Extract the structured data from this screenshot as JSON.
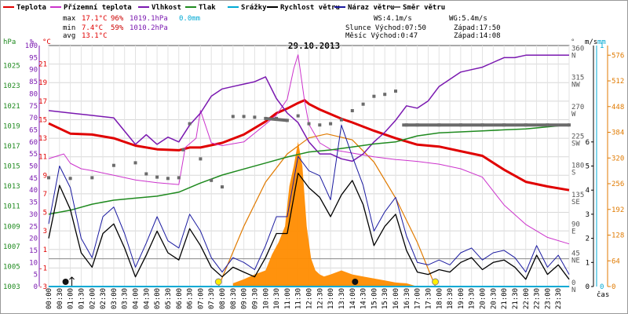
{
  "legend": [
    {
      "label": "Teplota",
      "color": "#e00000"
    },
    {
      "label": "Přízemní teplota",
      "color": "#cc33cc"
    },
    {
      "label": "Vlhkost",
      "color": "#7a18b0"
    },
    {
      "label": "Tlak",
      "color": "#1f8a1f"
    },
    {
      "label": "Srážky",
      "color": "#00a9d4"
    },
    {
      "label": "Rychlost větru",
      "color": "#000000"
    },
    {
      "label": "Náraz větru",
      "color": "#1a1aa0"
    },
    {
      "label": "Směr větru",
      "color": "#6b6b6b"
    }
  ],
  "stats": {
    "max": {
      "label": "max",
      "temp": "17.1°C",
      "hum": "96%",
      "press": "1019.1hPa",
      "rain": "0.0mm"
    },
    "min": {
      "label": "min",
      "temp": "7.4°C",
      "hum": "59%",
      "press": "1010.2hPa"
    },
    "avg": {
      "label": "avg",
      "temp": "13.1°C"
    }
  },
  "info": {
    "ws": "WS:4.1m/s",
    "wg": "WG:5.4m/s",
    "sun": "Slunce Východ:07:50",
    "sun_set": "Západ:17:50",
    "moon": "Měsíc  Východ:0:47",
    "moon_set": "Západ:14:08"
  },
  "chart_data": {
    "type": "line",
    "title": "29.10.2013",
    "xlabel": "čas",
    "x_ticks": [
      "00:00",
      "00:30",
      "01:00",
      "01:30",
      "02:00",
      "02:30",
      "03:00",
      "03:30",
      "04:00",
      "04:30",
      "05:00",
      "05:30",
      "06:00",
      "06:30",
      "07:00",
      "07:30",
      "08:00",
      "08:30",
      "09:00",
      "09:30",
      "10:00",
      "10:30",
      "11:00",
      "11:30",
      "12:00",
      "12:30",
      "13:00",
      "13:30",
      "14:00",
      "14:30",
      "15:00",
      "15:30",
      "16:00",
      "16:30",
      "17:00",
      "17:30",
      "18:00",
      "18:30",
      "19:00",
      "19:30",
      "20:00",
      "20:30",
      "21:00",
      "21:30",
      "22:00",
      "22:30",
      "23:00",
      "23:30"
    ],
    "axes": {
      "pressure": {
        "unit": "hPa",
        "range": [
          1003,
          1027
        ],
        "ticks": [
          1003,
          1005,
          1007,
          1009,
          1011,
          1013,
          1015,
          1017,
          1019,
          1021,
          1023,
          1025
        ]
      },
      "humidity": {
        "unit": "%",
        "range": [
          0,
          100
        ],
        "ticks": [
          0,
          5,
          10,
          15,
          20,
          25,
          30,
          35,
          40,
          45,
          50,
          55,
          60,
          65,
          70,
          75,
          80,
          85,
          90,
          95,
          100
        ]
      },
      "temperature": {
        "unit": "°C",
        "range": [
          -3,
          23
        ],
        "ticks": [
          -3,
          -1,
          1,
          3,
          5,
          7,
          9,
          11,
          13,
          15,
          17,
          19,
          21
        ]
      },
      "direction": {
        "unit": "°",
        "range": [
          0,
          370
        ],
        "ticks": [
          "0 N",
          "45 NE",
          "90 E",
          "135 SE",
          "180 S",
          "225 SW",
          "270 W",
          "315 NW",
          "360 N"
        ]
      },
      "wind": {
        "unit": "m/s",
        "range": [
          0,
          10
        ],
        "ticks": [
          0,
          1,
          2,
          3,
          4,
          5,
          6
        ]
      },
      "rain": {
        "unit": "mm",
        "range": [
          0,
          1
        ],
        "ticks": [
          0,
          1
        ]
      },
      "solar": {
        "unit": "",
        "range": [
          0,
          600
        ],
        "ticks": [
          0,
          64,
          128,
          192,
          256,
          320,
          384,
          448,
          512,
          576
        ]
      }
    },
    "series": [
      {
        "name": "Teplota",
        "axis": "temperature",
        "color": "#e00000",
        "x": [
          0,
          1,
          2,
          3,
          4,
          5,
          6,
          6.5,
          7,
          8,
          9,
          10,
          10.5,
          11,
          11.5,
          11.8,
          12,
          12.5,
          13,
          13.5,
          14,
          15,
          16,
          17,
          18,
          19,
          20,
          21,
          22,
          23,
          24
        ],
        "y": [
          14.6,
          13.5,
          13.4,
          13.0,
          12.2,
          11.8,
          11.7,
          12.0,
          12.0,
          12.5,
          13.4,
          14.8,
          15.7,
          16.2,
          16.8,
          17.1,
          16.7,
          16.1,
          15.6,
          15.1,
          14.7,
          13.8,
          13.0,
          12.3,
          12.1,
          11.6,
          11.1,
          9.6,
          8.3,
          7.8,
          7.4
        ]
      },
      {
        "name": "Přízemní teplota",
        "axis": "temperature",
        "color": "#cc33cc",
        "x": [
          0,
          0.7,
          1,
          1.5,
          2,
          3,
          4,
          5,
          6,
          6.3,
          6.8,
          7,
          7.5,
          8,
          9,
          10,
          10.5,
          11,
          11.3,
          11.5,
          11.8,
          12,
          12.5,
          13,
          14,
          15,
          16,
          17,
          18,
          19,
          20,
          21,
          22,
          23,
          24
        ],
        "y": [
          10.8,
          11.3,
          10.3,
          9.7,
          9.5,
          9.0,
          8.5,
          8.2,
          8.0,
          12.0,
          13.0,
          16.0,
          12.5,
          12.2,
          12.6,
          14.5,
          15.5,
          17.2,
          20.5,
          22.0,
          17.0,
          14.5,
          12.5,
          11.8,
          11.4,
          11.0,
          10.7,
          10.5,
          10.2,
          9.7,
          8.8,
          5.8,
          3.7,
          2.3,
          1.6
        ]
      },
      {
        "name": "Vlhkost",
        "axis": "humidity",
        "color": "#7a18b0",
        "x": [
          0,
          1,
          2,
          3,
          4,
          4.5,
          5,
          5.5,
          6,
          6.5,
          7,
          7.5,
          8,
          8.5,
          9,
          9.5,
          10,
          10.5,
          11,
          11.5,
          12,
          12.5,
          13,
          13.5,
          14,
          14.5,
          15,
          15.5,
          16,
          16.5,
          17,
          17.5,
          18,
          18.5,
          19,
          19.5,
          20,
          20.5,
          21,
          21.5,
          22,
          22.5,
          23,
          24
        ],
        "y": [
          73,
          72,
          71,
          70,
          59,
          63,
          59,
          62,
          60,
          67,
          72,
          79,
          82,
          83,
          84,
          85,
          87,
          78,
          72,
          68,
          60,
          55,
          55,
          53,
          52,
          55,
          60,
          64,
          69,
          75,
          74,
          77,
          83,
          86,
          89,
          90,
          91,
          93,
          95,
          95,
          96,
          96,
          96,
          96
        ]
      },
      {
        "name": "Tlak",
        "axis": "pressure",
        "color": "#1f8a1f",
        "x": [
          0,
          1,
          2,
          3,
          4,
          5,
          6,
          7,
          8,
          9,
          10,
          11,
          12,
          13,
          14,
          15,
          16,
          17,
          18,
          19,
          20,
          21,
          22,
          23,
          24
        ],
        "y": [
          1010.2,
          1010.6,
          1011.2,
          1011.6,
          1011.8,
          1012.0,
          1012.4,
          1013.3,
          1014.1,
          1014.7,
          1015.3,
          1015.9,
          1016.4,
          1016.6,
          1016.9,
          1017.2,
          1017.4,
          1018.0,
          1018.3,
          1018.4,
          1018.5,
          1018.6,
          1018.7,
          1018.9,
          1019.1
        ]
      },
      {
        "name": "Směr větru",
        "axis": "direction",
        "color": "#6b6b6b",
        "x": [
          0,
          1,
          2,
          3,
          4,
          4.5,
          5,
          5.5,
          6,
          6.2,
          6.5,
          7,
          7.5,
          8,
          8.5,
          9,
          9.5,
          10,
          10.5,
          11,
          11.5,
          12,
          12.5,
          13,
          13.5,
          14,
          14.5,
          15,
          15.5,
          16,
          16.5,
          17,
          18,
          19,
          20,
          21,
          22,
          23,
          24
        ],
        "y": [
          167,
          166,
          167,
          186,
          190,
          173,
          168,
          166,
          167,
          210,
          250,
          196,
          163,
          153,
          261,
          261,
          260,
          258,
          258,
          255,
          262,
          250,
          248,
          250,
          256,
          270,
          280,
          292,
          295,
          300,
          248,
          248,
          248,
          248,
          248,
          248,
          248,
          248,
          248
        ]
      },
      {
        "name": "Rychlost větru",
        "axis": "wind",
        "color": "#000000",
        "x": [
          0,
          0.5,
          1,
          1.5,
          2,
          2.5,
          3,
          3.5,
          4,
          4.5,
          5,
          5.5,
          6,
          6.5,
          7,
          7.5,
          8,
          8.5,
          9,
          9.5,
          10,
          10.5,
          11,
          11.5,
          12,
          12.5,
          13,
          13.5,
          14,
          14.5,
          15,
          15.5,
          16,
          16.5,
          17,
          17.5,
          18,
          18.5,
          19,
          19.5,
          20,
          20.5,
          21,
          21.5,
          22,
          22.5,
          23,
          23.5,
          24
        ],
        "y": [
          2.0,
          4.2,
          3.2,
          1.4,
          0.8,
          2.2,
          2.6,
          1.6,
          0.4,
          1.3,
          2.3,
          1.4,
          1.1,
          2.4,
          1.7,
          0.8,
          0.4,
          0.8,
          0.6,
          0.4,
          1.2,
          2.2,
          2.2,
          4.7,
          4.1,
          3.7,
          2.9,
          3.8,
          4.4,
          3.4,
          1.7,
          2.5,
          3.0,
          1.5,
          0.6,
          0.5,
          0.7,
          0.6,
          1.0,
          1.2,
          0.7,
          1.0,
          1.1,
          0.8,
          0.3,
          1.3,
          0.5,
          0.9,
          0.3
        ]
      },
      {
        "name": "Náraz větru",
        "axis": "wind",
        "color": "#1a1aa0",
        "x": [
          0,
          0.5,
          1,
          1.5,
          2,
          2.5,
          3,
          3.5,
          4,
          4.5,
          5,
          5.5,
          6,
          6.5,
          7,
          7.5,
          8,
          8.5,
          9,
          9.5,
          10,
          10.5,
          11,
          11.5,
          12,
          12.5,
          13,
          13.5,
          14,
          14.5,
          15,
          15.5,
          16,
          16.5,
          17,
          17.5,
          18,
          18.5,
          19,
          19.5,
          20,
          20.5,
          21,
          21.5,
          22,
          22.5,
          23,
          23.5,
          24
        ],
        "y": [
          2.6,
          5.0,
          4.1,
          2.0,
          1.2,
          2.9,
          3.3,
          2.2,
          0.8,
          1.8,
          2.9,
          1.9,
          1.6,
          3.0,
          2.3,
          1.2,
          0.6,
          1.2,
          1.0,
          0.7,
          1.7,
          2.9,
          2.9,
          5.4,
          4.8,
          4.6,
          3.6,
          6.7,
          5.4,
          4.2,
          2.3,
          3.1,
          3.7,
          2.1,
          1.0,
          0.9,
          1.1,
          0.9,
          1.4,
          1.6,
          1.1,
          1.4,
          1.5,
          1.2,
          0.6,
          1.7,
          0.8,
          1.3,
          0.5
        ]
      },
      {
        "name": "Srážky",
        "axis": "rain",
        "color": "#00a9d4",
        "x": [
          0,
          24
        ],
        "y": [
          0,
          0
        ]
      }
    ],
    "solar_clear_sky": {
      "color": "#e07a00",
      "x": [
        7.83,
        9,
        10,
        11,
        12,
        12.83,
        14,
        15,
        16,
        17,
        17.83
      ],
      "y": [
        0,
        150,
        260,
        330,
        370,
        380,
        365,
        310,
        220,
        110,
        0
      ]
    },
    "solar_radiation": {
      "color": "#ff8c00",
      "x": [
        8.5,
        9,
        9.5,
        10,
        10.3,
        10.6,
        10.9,
        11.1,
        11.3,
        11.5,
        11.7,
        11.9,
        12.1,
        12.3,
        12.5,
        12.7,
        13,
        13.5,
        14,
        14.5,
        15,
        15.5,
        16,
        16.5,
        17
      ],
      "y": [
        8,
        18,
        30,
        40,
        80,
        110,
        150,
        250,
        300,
        360,
        300,
        150,
        70,
        40,
        30,
        25,
        30,
        40,
        30,
        25,
        20,
        15,
        10,
        8,
        0
      ]
    },
    "markers": [
      {
        "kind": "moonrise",
        "time": 0.78
      },
      {
        "kind": "sunrise",
        "time": 7.83
      },
      {
        "kind": "moonset",
        "time": 14.13
      },
      {
        "kind": "sunset",
        "time": 17.83
      }
    ]
  }
}
